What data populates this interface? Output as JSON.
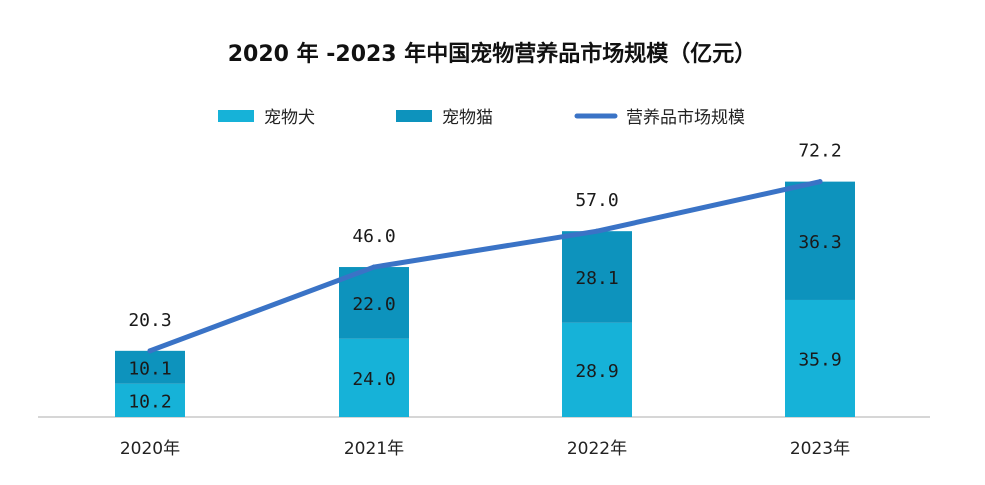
{
  "chart_data": {
    "type": "bar",
    "title": "2020 年 -2023 年中国宠物营养品市场规模（亿元）",
    "categories": [
      "2020年",
      "2021年",
      "2022年",
      "2023年"
    ],
    "series": [
      {
        "name": "宠物犬",
        "kind": "bar",
        "stacked": true,
        "color": "#16b2d8",
        "values": [
          10.2,
          24.0,
          28.9,
          35.9
        ],
        "labels": [
          "10.2",
          "24.0",
          "28.9",
          "35.9"
        ]
      },
      {
        "name": "宠物猫",
        "kind": "bar",
        "stacked": true,
        "color": "#0d93bd",
        "values": [
          10.1,
          22.0,
          28.1,
          36.3
        ],
        "labels": [
          "10.1",
          "22.0",
          "28.1",
          "36.3"
        ]
      },
      {
        "name": "营养品市场规模",
        "kind": "line",
        "color": "#3a73c6",
        "values": [
          20.3,
          46.0,
          57.0,
          72.2
        ],
        "labels": [
          "20.3",
          "46.0",
          "57.0",
          "72.2"
        ]
      }
    ],
    "xlabel": "",
    "ylabel": "",
    "ylim": [
      0,
      80
    ],
    "grid": false,
    "legend": "top-center",
    "axis_line_color": "#c8c8c8"
  }
}
